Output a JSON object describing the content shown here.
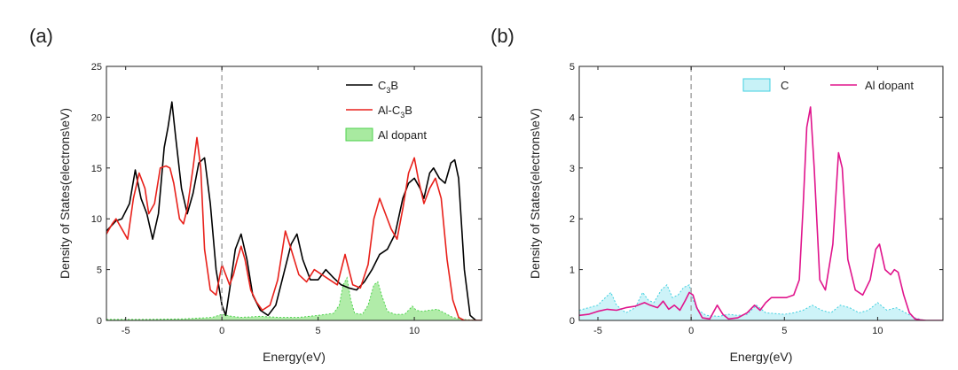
{
  "panels": [
    {
      "label": "(a)"
    },
    {
      "label": "(b)"
    }
  ],
  "chart_data": [
    {
      "type": "line",
      "xlabel": "Energy(eV)",
      "ylabel": "Density of States(electrons\\eV)",
      "xlim": [
        -6,
        13.5
      ],
      "ylim": [
        0,
        25
      ],
      "xticks": [
        -5,
        0,
        5,
        10
      ],
      "yticks": [
        0,
        5,
        10,
        15,
        20,
        25
      ],
      "fermi_level": 0,
      "legend_position": "top-right",
      "series": [
        {
          "name": "C3B",
          "name_main": "C",
          "name_sub": "3",
          "name_tail": "B",
          "style": "line",
          "color": "#000000",
          "x": [
            -6,
            -5.5,
            -5.2,
            -4.8,
            -4.5,
            -4.2,
            -3.9,
            -3.6,
            -3.3,
            -3.0,
            -2.8,
            -2.6,
            -2.4,
            -2.1,
            -1.8,
            -1.5,
            -1.2,
            -0.9,
            -0.6,
            -0.3,
            0.0,
            0.2,
            0.4,
            0.7,
            1.0,
            1.3,
            1.6,
            2.0,
            2.4,
            2.8,
            3.2,
            3.6,
            3.9,
            4.2,
            4.6,
            5.0,
            5.4,
            5.8,
            6.2,
            6.6,
            7.0,
            7.4,
            7.8,
            8.2,
            8.6,
            9.0,
            9.4,
            9.7,
            10.0,
            10.3,
            10.5,
            10.8,
            11.0,
            11.3,
            11.6,
            11.9,
            12.1,
            12.3,
            12.6,
            12.9,
            13.2,
            13.5
          ],
          "y": [
            8.8,
            9.8,
            10.0,
            11.5,
            14.8,
            12.0,
            10.5,
            8.0,
            10.5,
            17.0,
            19.0,
            21.5,
            18.0,
            13.0,
            10.5,
            12.5,
            15.5,
            16.0,
            11.5,
            5.0,
            1.5,
            0.5,
            3.0,
            7.0,
            8.5,
            6.0,
            2.5,
            1.0,
            0.5,
            1.5,
            4.5,
            7.5,
            8.5,
            6.0,
            4.0,
            4.0,
            5.0,
            4.2,
            3.5,
            3.2,
            3.0,
            3.8,
            5.0,
            6.5,
            7.0,
            8.5,
            12.0,
            13.5,
            14.0,
            13.0,
            12.0,
            14.5,
            15.0,
            14.0,
            13.5,
            15.5,
            15.8,
            14.0,
            5.0,
            0.5,
            0.0,
            0.0
          ]
        },
        {
          "name": "Al-C3B",
          "name_main": "Al-C",
          "name_sub": "3",
          "name_tail": "B",
          "style": "line",
          "color": "#e8211b",
          "x": [
            -6,
            -5.7,
            -5.5,
            -5.2,
            -4.9,
            -4.6,
            -4.3,
            -4.0,
            -3.8,
            -3.5,
            -3.2,
            -2.9,
            -2.7,
            -2.5,
            -2.2,
            -2.0,
            -1.8,
            -1.5,
            -1.3,
            -1.1,
            -0.9,
            -0.6,
            -0.3,
            0.0,
            0.2,
            0.4,
            0.6,
            0.8,
            1.0,
            1.2,
            1.5,
            1.8,
            2.1,
            2.5,
            2.9,
            3.3,
            3.6,
            4.0,
            4.4,
            4.8,
            5.2,
            5.6,
            6.0,
            6.4,
            6.8,
            7.2,
            7.6,
            7.9,
            8.2,
            8.5,
            8.8,
            9.1,
            9.4,
            9.7,
            10.0,
            10.2,
            10.5,
            10.8,
            11.1,
            11.4,
            11.7,
            12.0,
            12.3,
            12.6,
            13.0,
            13.5
          ],
          "y": [
            8.5,
            9.5,
            10.0,
            9.0,
            8.0,
            12.0,
            14.5,
            13.0,
            10.5,
            11.5,
            15.0,
            15.2,
            15.0,
            13.5,
            10.0,
            9.5,
            11.0,
            15.0,
            18.0,
            15.0,
            7.0,
            3.0,
            2.5,
            5.5,
            4.5,
            3.5,
            4.5,
            6.0,
            7.3,
            6.0,
            3.0,
            1.8,
            1.0,
            1.5,
            4.0,
            8.8,
            7.0,
            4.5,
            3.8,
            5.0,
            4.5,
            4.0,
            3.5,
            6.5,
            3.5,
            3.2,
            5.5,
            10.0,
            12.0,
            10.5,
            9.0,
            8.0,
            11.0,
            14.5,
            16.0,
            14.0,
            11.5,
            13.0,
            14.0,
            12.0,
            6.0,
            2.0,
            0.3,
            0.0,
            0.0,
            0.0
          ]
        },
        {
          "name": "Al dopant",
          "style": "area",
          "color": "#4cd24c",
          "fill": "#a8eaa0",
          "x": [
            -6,
            -4,
            -2,
            -0.5,
            0.0,
            0.5,
            1.0,
            2.0,
            3.0,
            4.0,
            5.0,
            5.8,
            6.1,
            6.3,
            6.5,
            6.7,
            6.9,
            7.3,
            7.6,
            7.9,
            8.1,
            8.3,
            8.6,
            9.0,
            9.5,
            9.9,
            10.1,
            10.4,
            10.8,
            11.2,
            11.6,
            12.0,
            12.5,
            13.5
          ],
          "y": [
            0.1,
            0.1,
            0.15,
            0.3,
            0.6,
            0.4,
            0.3,
            0.4,
            0.3,
            0.3,
            0.5,
            0.7,
            1.5,
            3.5,
            4.2,
            2.0,
            0.7,
            0.6,
            1.5,
            3.5,
            3.8,
            2.5,
            0.9,
            0.6,
            0.6,
            1.4,
            1.0,
            0.9,
            1.0,
            1.1,
            0.7,
            0.3,
            0.1,
            0.0
          ]
        }
      ]
    },
    {
      "type": "line",
      "xlabel": "Energy(eV)",
      "ylabel": "Density of States(electrons\\eV)",
      "xlim": [
        -6,
        13.5
      ],
      "ylim": [
        0,
        5
      ],
      "xticks": [
        -5,
        0,
        5,
        10
      ],
      "yticks": [
        0,
        1,
        2,
        3,
        4,
        5
      ],
      "fermi_level": 0,
      "legend_position": "top-right",
      "series": [
        {
          "name": "C",
          "style": "area",
          "color": "#40d0e0",
          "fill": "#c8f2f7",
          "x": [
            -6,
            -5.5,
            -5.0,
            -4.6,
            -4.3,
            -4.0,
            -3.5,
            -3.0,
            -2.6,
            -2.3,
            -2.0,
            -1.6,
            -1.3,
            -1.0,
            -0.7,
            -0.4,
            -0.1,
            0.1,
            0.4,
            0.8,
            1.5,
            2.0,
            2.5,
            3.0,
            3.5,
            4.0,
            5.0,
            5.5,
            6.0,
            6.5,
            7.0,
            7.5,
            8.0,
            8.5,
            9.0,
            9.5,
            10.0,
            10.5,
            11.0,
            11.5,
            12.0,
            12.5,
            13.5
          ],
          "y": [
            0.2,
            0.25,
            0.3,
            0.45,
            0.55,
            0.3,
            0.15,
            0.25,
            0.55,
            0.4,
            0.35,
            0.6,
            0.7,
            0.45,
            0.5,
            0.65,
            0.7,
            0.4,
            0.2,
            0.1,
            0.08,
            0.12,
            0.1,
            0.12,
            0.3,
            0.15,
            0.12,
            0.15,
            0.2,
            0.3,
            0.2,
            0.15,
            0.3,
            0.25,
            0.15,
            0.2,
            0.35,
            0.2,
            0.25,
            0.15,
            0.05,
            0.0,
            0.0
          ]
        },
        {
          "name": "Al dopant",
          "style": "line",
          "color": "#e0148c",
          "x": [
            -6,
            -5.5,
            -5.0,
            -4.5,
            -4.0,
            -3.5,
            -3.0,
            -2.5,
            -2.2,
            -1.8,
            -1.5,
            -1.2,
            -0.9,
            -0.6,
            -0.3,
            -0.1,
            0.1,
            0.3,
            0.6,
            1.0,
            1.4,
            1.7,
            2.0,
            2.5,
            3.0,
            3.4,
            3.7,
            4.0,
            4.3,
            4.7,
            5.1,
            5.5,
            5.8,
            6.0,
            6.2,
            6.4,
            6.6,
            6.9,
            7.2,
            7.6,
            7.9,
            8.1,
            8.4,
            8.8,
            9.2,
            9.6,
            9.9,
            10.1,
            10.4,
            10.7,
            10.9,
            11.1,
            11.4,
            11.7,
            12.0,
            12.3,
            12.6,
            13.0,
            13.5
          ],
          "y": [
            0.1,
            0.12,
            0.18,
            0.22,
            0.2,
            0.25,
            0.28,
            0.35,
            0.3,
            0.25,
            0.38,
            0.22,
            0.3,
            0.2,
            0.4,
            0.55,
            0.5,
            0.25,
            0.05,
            0.03,
            0.3,
            0.12,
            0.03,
            0.05,
            0.15,
            0.3,
            0.2,
            0.35,
            0.45,
            0.45,
            0.45,
            0.5,
            0.8,
            2.2,
            3.8,
            4.2,
            3.0,
            0.8,
            0.6,
            1.5,
            3.3,
            3.0,
            1.2,
            0.6,
            0.5,
            0.8,
            1.4,
            1.5,
            1.0,
            0.9,
            1.0,
            0.95,
            0.5,
            0.15,
            0.03,
            0.01,
            0.0,
            0.0,
            0.0
          ]
        }
      ]
    }
  ]
}
